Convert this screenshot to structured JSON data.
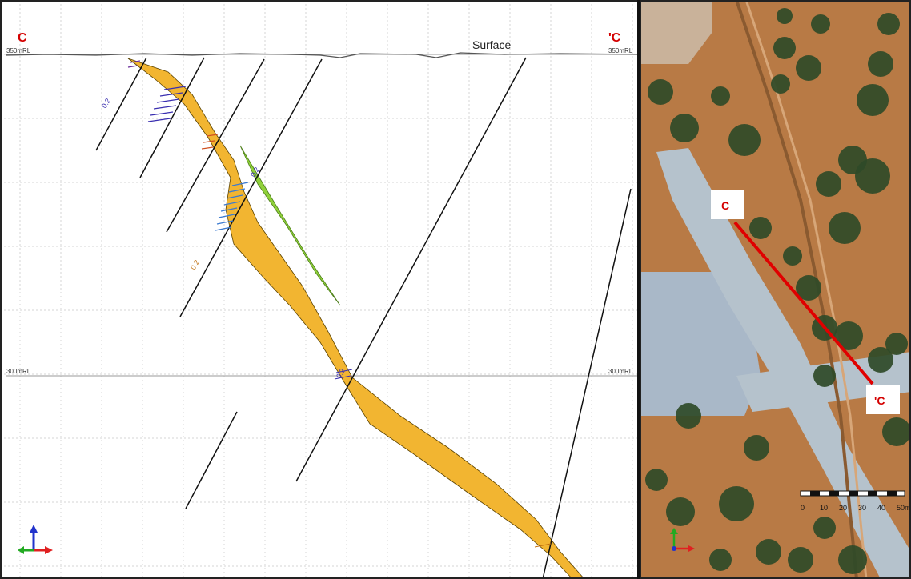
{
  "section_view": {
    "labels": {
      "start": "C",
      "end": "'C",
      "surface": "Surface",
      "rl_top_left": "350mRL",
      "rl_top_right": "350mRL",
      "rl_mid_left": "300mRL",
      "rl_mid_right": "300mRL"
    },
    "assay_value": "0.2",
    "colors": {
      "ore_body": "#f2b531",
      "ore_outline": "#5a4200",
      "secondary_lens": "#8fd03a",
      "drill_trace": "#111111",
      "section_label": "#d40000",
      "grid": "#cfcfcf"
    }
  },
  "location_map": {
    "labels": {
      "start": "C",
      "end": "'C"
    },
    "scale_ticks": [
      "0",
      "10",
      "20",
      "30",
      "40",
      "50m"
    ],
    "colors": {
      "section_line": "#e00000",
      "label_text": "#d40000",
      "label_bg": "#ffffff"
    }
  },
  "axis_gizmo": {
    "colors": {
      "x": "#e02020",
      "y": "#22aa22",
      "z": "#2233cc"
    }
  }
}
